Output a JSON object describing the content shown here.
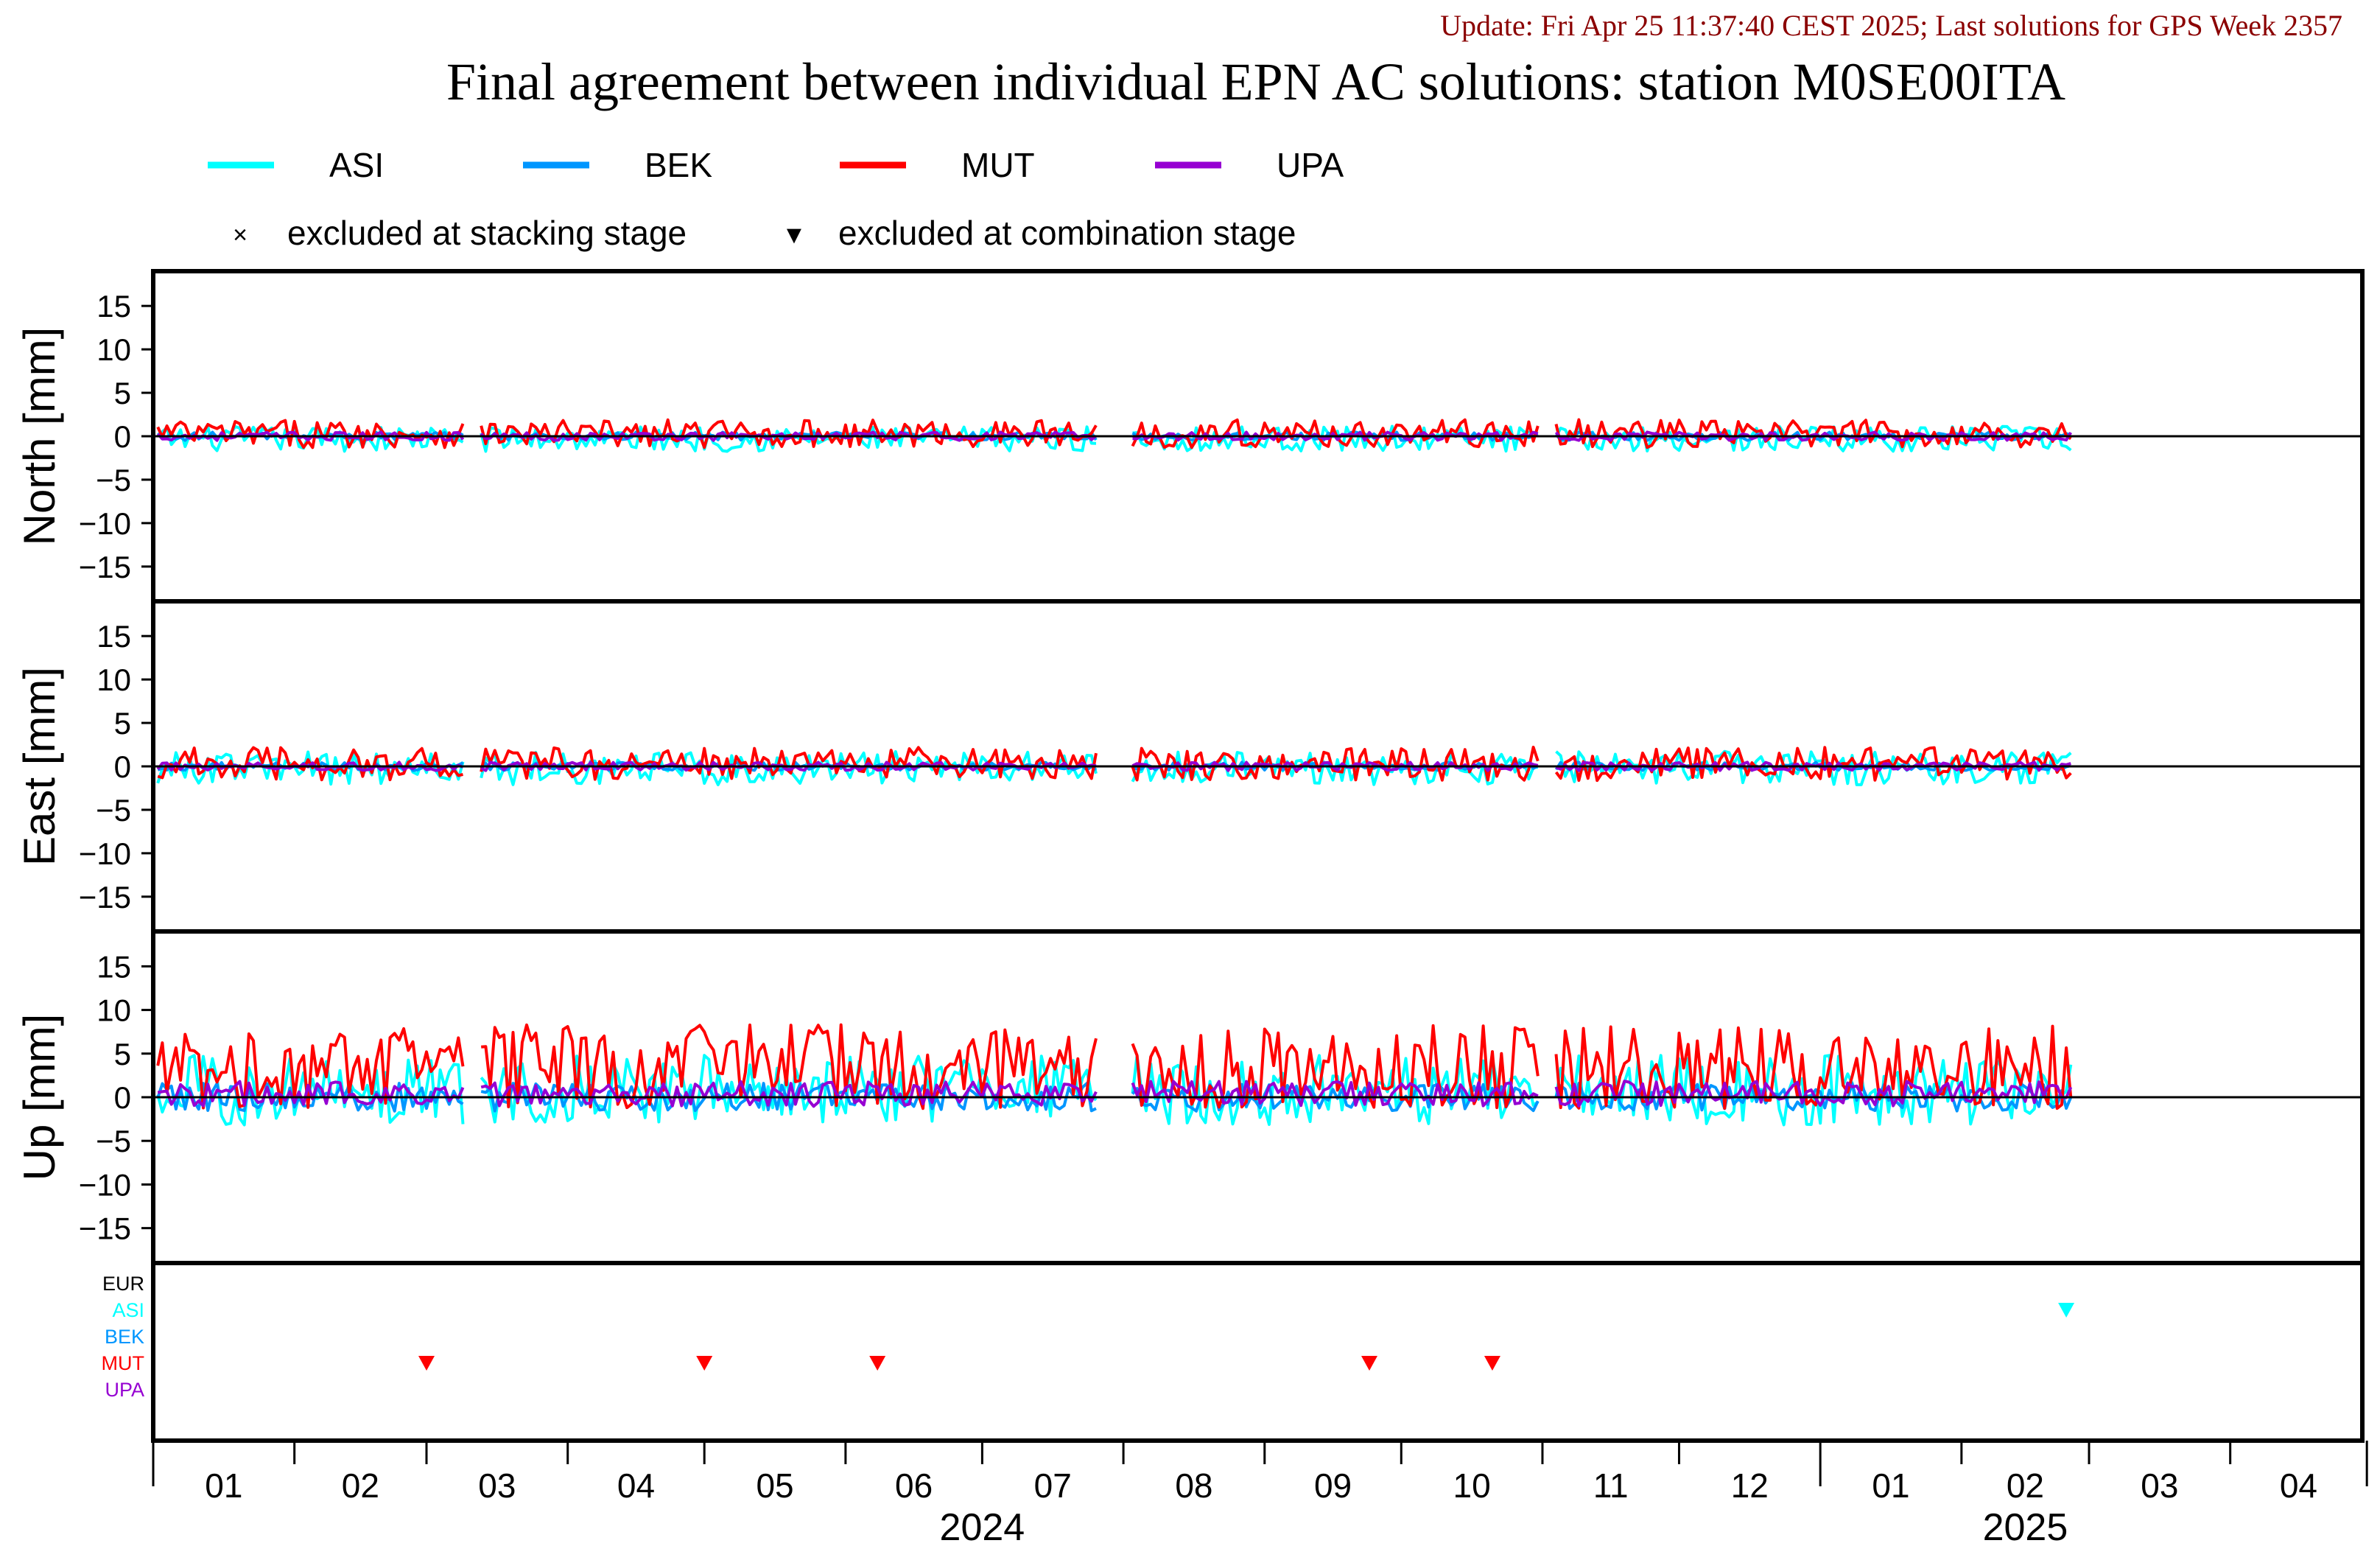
{
  "update_text": "Update: Fri Apr 25 11:37:40 CEST 2025; Last solutions for GPS Week 2357",
  "chart_data": {
    "type": "line",
    "title": "Final agreement between individual EPN AC solutions: station M0SE00ITA",
    "legend": {
      "placement": "top",
      "series": [
        {
          "name": "ASI",
          "color": "#00ffff"
        },
        {
          "name": "BEK",
          "color": "#0096ff"
        },
        {
          "name": "MUT",
          "color": "#ff0000"
        },
        {
          "name": "UPA",
          "color": "#9600d2"
        }
      ],
      "markers": [
        {
          "symbol": "×",
          "label": "excluded at stacking stage"
        },
        {
          "symbol": "▼",
          "label": "excluded at combination stage"
        }
      ]
    },
    "x_axis": {
      "range": [
        "2024-01-01",
        "2025-04-30"
      ],
      "month_labels": [
        "01",
        "02",
        "03",
        "04",
        "05",
        "06",
        "07",
        "08",
        "09",
        "10",
        "11",
        "12",
        "01",
        "02",
        "03",
        "04"
      ],
      "year_labels": [
        {
          "label": "2024",
          "center": "2024-07-01"
        },
        {
          "label": "2025",
          "center": "2025-02-15"
        }
      ]
    },
    "panels": [
      {
        "ylabel": "North [mm]",
        "ylim": [
          -19,
          19
        ],
        "yticks": [
          15,
          10,
          5,
          0,
          -5,
          -10,
          -15
        ],
        "amplitude": {
          "ASI": 0.9,
          "BEK": 0.3,
          "MUT": 1.0,
          "UPA": 0.3
        },
        "offset": {
          "ASI": -0.3,
          "BEK": 0.0,
          "MUT": 0.3,
          "UPA": 0.0
        }
      },
      {
        "ylabel": "East [mm]",
        "ylim": [
          -19,
          19
        ],
        "yticks": [
          15,
          10,
          5,
          0,
          -5,
          -10,
          -15
        ],
        "amplitude": {
          "ASI": 1.2,
          "BEK": 0.3,
          "MUT": 1.2,
          "UPA": 0.3
        },
        "offset": {
          "ASI": -0.2,
          "BEK": 0.0,
          "MUT": 0.3,
          "UPA": 0.0
        }
      },
      {
        "ylabel": "Up [mm]",
        "ylim": [
          -19,
          19
        ],
        "yticks": [
          15,
          10,
          5,
          0,
          -5,
          -10,
          -15
        ],
        "amplitude": {
          "ASI": 2.5,
          "BEK": 1.0,
          "MUT": 3.0,
          "UPA": 0.9
        },
        "offset": {
          "ASI": 0.8,
          "BEK": 0.0,
          "MUT": 3.5,
          "UPA": 0.4
        }
      }
    ],
    "gaps": [
      [
        "2024-03-10",
        "2024-03-12"
      ],
      [
        "2024-07-27",
        "2024-08-02"
      ],
      [
        "2024-11-01",
        "2024-11-03"
      ]
    ],
    "end_date": "2025-02-25",
    "exclusion_panel": {
      "rows": [
        "EUR",
        "ASI",
        "BEK",
        "MUT",
        "UPA"
      ],
      "row_colors": [
        "#000000",
        "#00ffff",
        "#0096ff",
        "#ff0000",
        "#9600d2"
      ],
      "combination_excluded": [
        {
          "series": "MUT",
          "date": "2024-03-01"
        },
        {
          "series": "MUT",
          "date": "2024-05-01"
        },
        {
          "series": "MUT",
          "date": "2024-06-08"
        },
        {
          "series": "MUT",
          "date": "2024-09-24"
        },
        {
          "series": "MUT",
          "date": "2024-10-21"
        },
        {
          "series": "ASI",
          "date": "2025-02-24"
        }
      ],
      "stacking_excluded": []
    }
  }
}
